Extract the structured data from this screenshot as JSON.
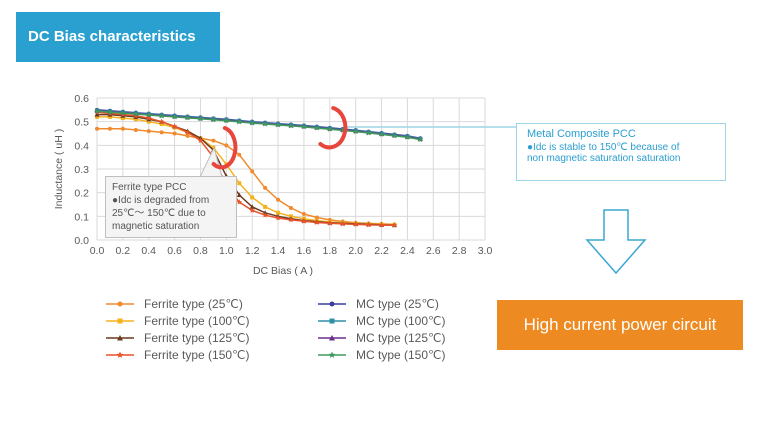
{
  "header": {
    "title": "DC Bias characteristics"
  },
  "callouts": {
    "mc": {
      "title": "Metal Composite PCC",
      "line1": "●Idc is stable to 150℃ because of",
      "line2": "non magnetic saturation saturation"
    },
    "ferrite": {
      "title": "Ferrite type PCC",
      "line1": "●Idc is degraded from",
      "line2": "25℃～ 150℃  due to",
      "line3": "magnetic saturation"
    }
  },
  "banner": {
    "label": "High current power circuit"
  },
  "colors": {
    "title_bg": "#2aa0d0",
    "banner_bg": "#ee8a22",
    "ring": "#e8453c",
    "callout_border": "#9fd3e6"
  },
  "chart_data": {
    "type": "line",
    "xlabel": "DC Bias ( A )",
    "ylabel": "Inductance ( uH )",
    "xlim": [
      0,
      3.0
    ],
    "ylim": [
      0,
      0.6
    ],
    "xticks": [
      "0.0",
      "0.2",
      "0.4",
      "0.6",
      "0.8",
      "1.0",
      "1.2",
      "1.4",
      "1.6",
      "1.8",
      "2.0",
      "2.2",
      "2.4",
      "2.6",
      "2.8",
      "3.0"
    ],
    "yticks": [
      "0.0",
      "0.1",
      "0.2",
      "0.3",
      "0.4",
      "0.5",
      "0.6"
    ],
    "grid": true,
    "legend_position": "bottom",
    "series": [
      {
        "name": "Ferrite type (25℃)",
        "color": "#f08a2c",
        "marker": "circle",
        "x": [
          0,
          0.1,
          0.2,
          0.3,
          0.4,
          0.5,
          0.6,
          0.7,
          0.8,
          0.9,
          1.0,
          1.1,
          1.2,
          1.3,
          1.4,
          1.5,
          1.6,
          1.7,
          1.8,
          1.9,
          2.0,
          2.1,
          2.2,
          2.3
        ],
        "y": [
          0.47,
          0.47,
          0.47,
          0.465,
          0.46,
          0.455,
          0.45,
          0.44,
          0.43,
          0.42,
          0.4,
          0.36,
          0.29,
          0.22,
          0.17,
          0.135,
          0.11,
          0.095,
          0.085,
          0.078,
          0.073,
          0.07,
          0.068,
          0.066
        ]
      },
      {
        "name": "Ferrite type (100℃)",
        "color": "#f5b21f",
        "marker": "square",
        "x": [
          0,
          0.1,
          0.2,
          0.3,
          0.4,
          0.5,
          0.6,
          0.7,
          0.8,
          0.9,
          1.0,
          1.1,
          1.2,
          1.3,
          1.4,
          1.5,
          1.6,
          1.7,
          1.8,
          1.9,
          2.0,
          2.1,
          2.2,
          2.3
        ],
        "y": [
          0.52,
          0.52,
          0.515,
          0.51,
          0.5,
          0.49,
          0.475,
          0.455,
          0.43,
          0.39,
          0.32,
          0.24,
          0.18,
          0.14,
          0.115,
          0.1,
          0.09,
          0.082,
          0.076,
          0.072,
          0.069,
          0.067,
          0.065,
          0.064
        ]
      },
      {
        "name": "Ferrite type (125℃)",
        "color": "#6b3a1e",
        "marker": "triangle",
        "x": [
          0,
          0.1,
          0.2,
          0.3,
          0.4,
          0.5,
          0.6,
          0.7,
          0.8,
          0.9,
          1.0,
          1.1,
          1.2,
          1.3,
          1.4,
          1.5,
          1.6,
          1.7,
          1.8,
          1.9,
          2.0,
          2.1,
          2.2,
          2.3
        ],
        "y": [
          0.53,
          0.53,
          0.525,
          0.52,
          0.51,
          0.5,
          0.48,
          0.46,
          0.43,
          0.38,
          0.27,
          0.19,
          0.14,
          0.115,
          0.1,
          0.09,
          0.082,
          0.077,
          0.073,
          0.07,
          0.068,
          0.066,
          0.064,
          0.063
        ]
      },
      {
        "name": "Ferrite type (150℃)",
        "color": "#e8532a",
        "marker": "star",
        "x": [
          0,
          0.1,
          0.2,
          0.3,
          0.4,
          0.5,
          0.6,
          0.7,
          0.8,
          0.9,
          1.0,
          1.1,
          1.2,
          1.3,
          1.4,
          1.5,
          1.6,
          1.7,
          1.8,
          1.9,
          2.0,
          2.1,
          2.2,
          2.3
        ],
        "y": [
          0.54,
          0.535,
          0.53,
          0.525,
          0.515,
          0.5,
          0.48,
          0.455,
          0.42,
          0.35,
          0.23,
          0.16,
          0.125,
          0.105,
          0.093,
          0.085,
          0.079,
          0.074,
          0.071,
          0.068,
          0.066,
          0.064,
          0.063,
          0.062
        ]
      },
      {
        "name": "MC type (25℃)",
        "color": "#3a3f9e",
        "marker": "circle",
        "x": [
          0,
          0.1,
          0.2,
          0.3,
          0.4,
          0.5,
          0.6,
          0.7,
          0.8,
          0.9,
          1.0,
          1.1,
          1.2,
          1.3,
          1.4,
          1.5,
          1.6,
          1.7,
          1.8,
          1.9,
          2.0,
          2.1,
          2.2,
          2.3,
          2.4,
          2.5
        ],
        "y": [
          0.55,
          0.546,
          0.542,
          0.538,
          0.534,
          0.53,
          0.526,
          0.522,
          0.518,
          0.514,
          0.51,
          0.505,
          0.5,
          0.496,
          0.492,
          0.488,
          0.484,
          0.479,
          0.474,
          0.469,
          0.464,
          0.458,
          0.452,
          0.446,
          0.44,
          0.43
        ]
      },
      {
        "name": "MC type (100℃)",
        "color": "#2e8fa8",
        "marker": "square",
        "x": [
          0,
          0.1,
          0.2,
          0.3,
          0.4,
          0.5,
          0.6,
          0.7,
          0.8,
          0.9,
          1.0,
          1.1,
          1.2,
          1.3,
          1.4,
          1.5,
          1.6,
          1.7,
          1.8,
          1.9,
          2.0,
          2.1,
          2.2,
          2.3,
          2.4,
          2.5
        ],
        "y": [
          0.548,
          0.544,
          0.54,
          0.536,
          0.532,
          0.528,
          0.524,
          0.52,
          0.516,
          0.512,
          0.508,
          0.503,
          0.498,
          0.494,
          0.49,
          0.486,
          0.482,
          0.477,
          0.472,
          0.467,
          0.462,
          0.456,
          0.45,
          0.444,
          0.438,
          0.428
        ]
      },
      {
        "name": "MC type (125℃)",
        "color": "#6b2f8e",
        "marker": "triangle",
        "x": [
          0,
          0.1,
          0.2,
          0.3,
          0.4,
          0.5,
          0.6,
          0.7,
          0.8,
          0.9,
          1.0,
          1.1,
          1.2,
          1.3,
          1.4,
          1.5,
          1.6,
          1.7,
          1.8,
          1.9,
          2.0,
          2.1,
          2.2,
          2.3,
          2.4,
          2.5
        ],
        "y": [
          0.546,
          0.542,
          0.538,
          0.534,
          0.53,
          0.526,
          0.522,
          0.518,
          0.514,
          0.51,
          0.506,
          0.501,
          0.496,
          0.492,
          0.488,
          0.484,
          0.48,
          0.475,
          0.47,
          0.465,
          0.46,
          0.454,
          0.448,
          0.442,
          0.436,
          0.426
        ]
      },
      {
        "name": "MC type (150℃)",
        "color": "#3d9a5a",
        "marker": "star",
        "x": [
          0,
          0.1,
          0.2,
          0.3,
          0.4,
          0.5,
          0.6,
          0.7,
          0.8,
          0.9,
          1.0,
          1.1,
          1.2,
          1.3,
          1.4,
          1.5,
          1.6,
          1.7,
          1.8,
          1.9,
          2.0,
          2.1,
          2.2,
          2.3,
          2.4,
          2.5
        ],
        "y": [
          0.544,
          0.54,
          0.536,
          0.532,
          0.528,
          0.524,
          0.52,
          0.516,
          0.512,
          0.508,
          0.504,
          0.499,
          0.494,
          0.49,
          0.486,
          0.482,
          0.478,
          0.473,
          0.468,
          0.463,
          0.458,
          0.452,
          0.446,
          0.44,
          0.434,
          0.424
        ]
      }
    ]
  }
}
